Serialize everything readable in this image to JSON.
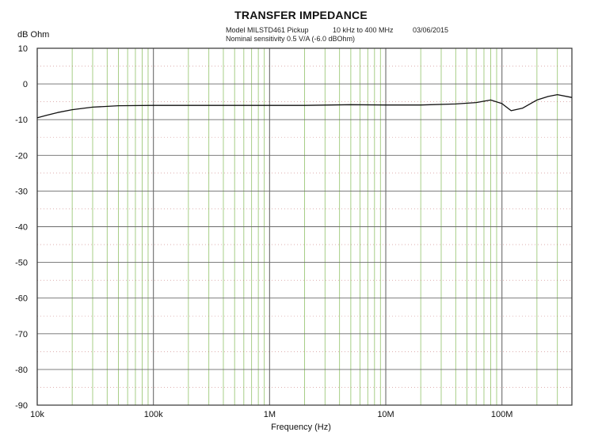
{
  "chart_data": {
    "type": "line",
    "title": "TRANSFER IMPEDANCE",
    "subtitle_left_1": "Model MILSTD461 Pickup",
    "subtitle_mid": "10 kHz to 400 MHz",
    "subtitle_date": "03/06/2015",
    "subtitle_left_2": "Nominal sensitivity 0.5 V/A (-6.0 dBOhm)",
    "ylabel": "dB Ohm",
    "xlabel": "Frequency (Hz)",
    "x_scale": "log",
    "xlim": [
      10000,
      400000000
    ],
    "ylim": [
      -90,
      10
    ],
    "grid": true,
    "colors": {
      "grid": "#9ec97a",
      "grid_major": "#6b6b6b",
      "minor_dash": "#b34a4a",
      "trace": "#111111"
    },
    "y_ticks": [
      "10",
      "0",
      "-10",
      "-20",
      "-30",
      "-40",
      "-50",
      "-60",
      "-70",
      "-80",
      "-90"
    ],
    "y_tick_values": [
      10,
      0,
      -10,
      -20,
      -30,
      -40,
      -50,
      -60,
      -70,
      -80,
      -90
    ],
    "x_tick_labels": [
      "10k",
      "100k",
      "1M",
      "10M",
      "100M"
    ],
    "x_tick_values": [
      10000,
      100000,
      1000000,
      10000000,
      100000000
    ],
    "series": [
      {
        "x": [
          10000,
          12000,
          15000,
          20000,
          30000,
          50000,
          100000,
          200000,
          500000,
          1000000,
          2000000,
          5000000,
          10000000,
          20000000,
          40000000,
          60000000,
          80000000,
          100000000,
          120000000,
          150000000,
          200000000,
          250000000,
          300000000,
          400000000
        ],
        "y": [
          -9.5,
          -8.8,
          -8.0,
          -7.2,
          -6.5,
          -6.1,
          -6.0,
          -6.0,
          -6.0,
          -6.0,
          -6.0,
          -5.8,
          -5.9,
          -5.9,
          -5.6,
          -5.2,
          -4.5,
          -5.5,
          -7.5,
          -6.8,
          -4.5,
          -3.5,
          -3.0,
          -3.8
        ]
      }
    ]
  }
}
